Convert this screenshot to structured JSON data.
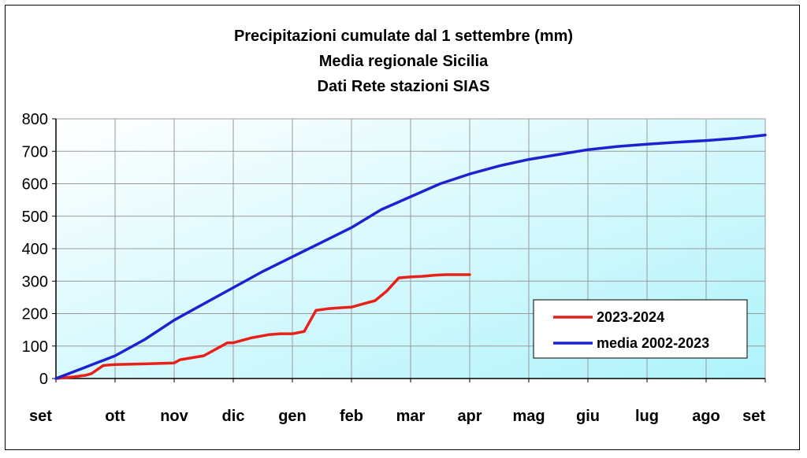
{
  "chart_data": {
    "type": "line",
    "title_lines": [
      "Precipitazioni cumulate dal 1 settembre (mm)",
      "Media regionale Sicilia",
      "Dati Rete stazioni SIAS"
    ],
    "xlabel": "",
    "ylabel": "",
    "ylim": [
      0,
      800
    ],
    "yticks": [
      0,
      100,
      200,
      300,
      400,
      500,
      600,
      700,
      800
    ],
    "xticks": [
      "set",
      "ott",
      "nov",
      "dic",
      "gen",
      "feb",
      "mar",
      "apr",
      "mag",
      "giu",
      "lug",
      "ago",
      "set"
    ],
    "grid": true,
    "legend_position": "lower-right",
    "background_gradient": [
      "#ffffff",
      "#aef3fb"
    ],
    "series": [
      {
        "name": "2023-2024",
        "color": "#e8201a",
        "x": [
          0,
          0.3,
          0.5,
          0.6,
          0.8,
          0.9,
          1.0,
          1.5,
          2.0,
          2.1,
          2.5,
          2.8,
          2.9,
          3.0,
          3.3,
          3.6,
          3.8,
          4.0,
          4.2,
          4.4,
          4.6,
          4.8,
          5.0,
          5.2,
          5.4,
          5.6,
          5.8,
          6.0,
          6.2,
          6.4,
          6.6,
          6.7,
          6.8,
          6.9,
          7.0
        ],
        "y": [
          0,
          5,
          10,
          15,
          40,
          42,
          43,
          45,
          48,
          58,
          70,
          100,
          110,
          110,
          125,
          135,
          138,
          138,
          145,
          210,
          215,
          218,
          220,
          230,
          240,
          270,
          310,
          313,
          315,
          318,
          320,
          320,
          320,
          320,
          320
        ]
      },
      {
        "name": "media 2002-2023",
        "color": "#1c22d0",
        "x": [
          0,
          0.5,
          1.0,
          1.5,
          2.0,
          2.5,
          3.0,
          3.5,
          4.0,
          4.5,
          5.0,
          5.5,
          6.0,
          6.5,
          7.0,
          7.5,
          8.0,
          8.5,
          9.0,
          9.5,
          10.0,
          10.5,
          11.0,
          11.5,
          12.0
        ],
        "y": [
          0,
          35,
          70,
          120,
          180,
          230,
          280,
          330,
          375,
          420,
          465,
          520,
          560,
          600,
          630,
          655,
          675,
          690,
          705,
          715,
          722,
          728,
          733,
          740,
          750
        ]
      }
    ]
  }
}
